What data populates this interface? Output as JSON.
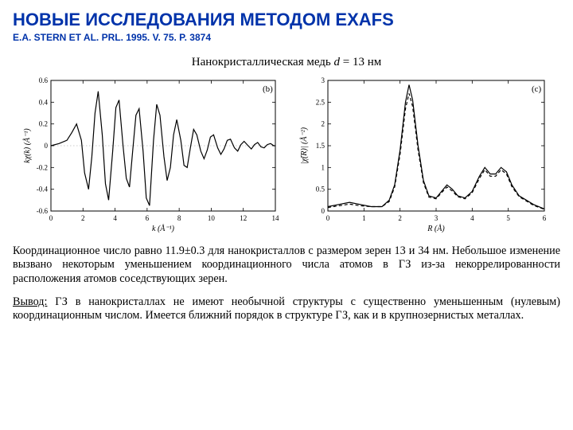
{
  "title": "НОВЫЕ ИССЛЕДОВАНИЯ МЕТОДОМ EXAFS",
  "citation": "E.A. STERN ET AL. PRL. 1995. V. 75. P. 3874",
  "subtitle_prefix": "Нанокристаллическая медь ",
  "subtitle_var": "d",
  "subtitle_suffix": " = 13 нм",
  "chart_left": {
    "type": "line",
    "panel_label": "(b)",
    "xlabel": "k (Å⁻¹)",
    "ylabel": "kχ(k) (Å⁻¹)",
    "xlim": [
      0,
      14
    ],
    "ylim": [
      -0.6,
      0.6
    ],
    "xticks": [
      0,
      2,
      4,
      6,
      8,
      10,
      12,
      14
    ],
    "yticks": [
      -0.6,
      -0.4,
      -0.2,
      0,
      0.2,
      0.4,
      0.6
    ],
    "axis_color": "#000000",
    "line_color": "#000000",
    "line_width": 1.2,
    "background_color": "#ffffff",
    "zero_line": true,
    "series": [
      [
        0,
        0
      ],
      [
        0.5,
        0.02
      ],
      [
        1,
        0.05
      ],
      [
        1.3,
        0.12
      ],
      [
        1.6,
        0.2
      ],
      [
        1.9,
        0.05
      ],
      [
        2.1,
        -0.25
      ],
      [
        2.35,
        -0.4
      ],
      [
        2.55,
        -0.1
      ],
      [
        2.75,
        0.3
      ],
      [
        2.95,
        0.5
      ],
      [
        3.2,
        0.1
      ],
      [
        3.4,
        -0.35
      ],
      [
        3.6,
        -0.5
      ],
      [
        3.85,
        -0.05
      ],
      [
        4.05,
        0.35
      ],
      [
        4.25,
        0.42
      ],
      [
        4.5,
        0.0
      ],
      [
        4.7,
        -0.3
      ],
      [
        4.9,
        -0.38
      ],
      [
        5.1,
        -0.05
      ],
      [
        5.3,
        0.28
      ],
      [
        5.5,
        0.34
      ],
      [
        5.75,
        -0.05
      ],
      [
        5.95,
        -0.48
      ],
      [
        6.15,
        -0.55
      ],
      [
        6.4,
        0.05
      ],
      [
        6.6,
        0.38
      ],
      [
        6.8,
        0.28
      ],
      [
        7.05,
        -0.1
      ],
      [
        7.25,
        -0.32
      ],
      [
        7.45,
        -0.2
      ],
      [
        7.65,
        0.1
      ],
      [
        7.85,
        0.24
      ],
      [
        8.1,
        0.05
      ],
      [
        8.3,
        -0.18
      ],
      [
        8.5,
        -0.2
      ],
      [
        8.7,
        -0.02
      ],
      [
        8.9,
        0.15
      ],
      [
        9.1,
        0.1
      ],
      [
        9.35,
        -0.05
      ],
      [
        9.55,
        -0.12
      ],
      [
        9.75,
        -0.04
      ],
      [
        9.95,
        0.08
      ],
      [
        10.15,
        0.1
      ],
      [
        10.4,
        -0.02
      ],
      [
        10.6,
        -0.08
      ],
      [
        10.8,
        -0.03
      ],
      [
        11,
        0.05
      ],
      [
        11.2,
        0.06
      ],
      [
        11.45,
        -0.02
      ],
      [
        11.65,
        -0.05
      ],
      [
        11.85,
        0.01
      ],
      [
        12.05,
        0.04
      ],
      [
        12.3,
        0.0
      ],
      [
        12.5,
        -0.03
      ],
      [
        12.7,
        0.01
      ],
      [
        12.9,
        0.03
      ],
      [
        13.1,
        -0.01
      ],
      [
        13.3,
        -0.02
      ],
      [
        13.5,
        0.01
      ],
      [
        13.7,
        0.02
      ],
      [
        13.9,
        0.0
      ],
      [
        14,
        0
      ]
    ]
  },
  "chart_right": {
    "type": "line",
    "panel_label": "(c)",
    "xlabel": "R (Å)",
    "ylabel": "|χ̃(R)| (Å⁻²)",
    "xlim": [
      0,
      6
    ],
    "ylim": [
      0,
      3.0
    ],
    "xticks": [
      0,
      1,
      2,
      3,
      4,
      5,
      6
    ],
    "yticks": [
      0,
      0.5,
      1.0,
      1.5,
      2.0,
      2.5,
      3.0
    ],
    "axis_color": "#000000",
    "line_color": "#000000",
    "dash_color": "#000000",
    "line_width": 1.2,
    "background_color": "#ffffff",
    "series_solid": [
      [
        0,
        0.1
      ],
      [
        0.3,
        0.15
      ],
      [
        0.6,
        0.2
      ],
      [
        0.9,
        0.15
      ],
      [
        1.2,
        0.1
      ],
      [
        1.5,
        0.1
      ],
      [
        1.7,
        0.25
      ],
      [
        1.85,
        0.6
      ],
      [
        2.0,
        1.4
      ],
      [
        2.15,
        2.5
      ],
      [
        2.25,
        2.9
      ],
      [
        2.35,
        2.55
      ],
      [
        2.5,
        1.5
      ],
      [
        2.65,
        0.7
      ],
      [
        2.8,
        0.35
      ],
      [
        3.0,
        0.3
      ],
      [
        3.15,
        0.45
      ],
      [
        3.3,
        0.6
      ],
      [
        3.45,
        0.5
      ],
      [
        3.6,
        0.35
      ],
      [
        3.8,
        0.3
      ],
      [
        4.0,
        0.45
      ],
      [
        4.2,
        0.8
      ],
      [
        4.35,
        1.0
      ],
      [
        4.5,
        0.85
      ],
      [
        4.65,
        0.85
      ],
      [
        4.8,
        1.0
      ],
      [
        4.95,
        0.9
      ],
      [
        5.1,
        0.6
      ],
      [
        5.3,
        0.35
      ],
      [
        5.5,
        0.25
      ],
      [
        5.7,
        0.15
      ],
      [
        5.9,
        0.08
      ],
      [
        6,
        0.05
      ]
    ],
    "series_dash": [
      [
        0,
        0.08
      ],
      [
        0.3,
        0.12
      ],
      [
        0.6,
        0.16
      ],
      [
        0.9,
        0.12
      ],
      [
        1.2,
        0.1
      ],
      [
        1.5,
        0.1
      ],
      [
        1.7,
        0.22
      ],
      [
        1.85,
        0.55
      ],
      [
        2.0,
        1.3
      ],
      [
        2.15,
        2.35
      ],
      [
        2.25,
        2.7
      ],
      [
        2.35,
        2.4
      ],
      [
        2.5,
        1.4
      ],
      [
        2.65,
        0.65
      ],
      [
        2.8,
        0.32
      ],
      [
        3.0,
        0.28
      ],
      [
        3.15,
        0.42
      ],
      [
        3.3,
        0.55
      ],
      [
        3.45,
        0.46
      ],
      [
        3.6,
        0.33
      ],
      [
        3.8,
        0.28
      ],
      [
        4.0,
        0.42
      ],
      [
        4.2,
        0.75
      ],
      [
        4.35,
        0.95
      ],
      [
        4.5,
        0.8
      ],
      [
        4.65,
        0.8
      ],
      [
        4.8,
        0.95
      ],
      [
        4.95,
        0.85
      ],
      [
        5.1,
        0.56
      ],
      [
        5.3,
        0.33
      ],
      [
        5.5,
        0.23
      ],
      [
        5.7,
        0.13
      ],
      [
        5.9,
        0.07
      ],
      [
        6,
        0.04
      ]
    ]
  },
  "para1": "Координационное число равно 11.9±0.3 для нанокристаллов с размером зерен 13 и 34 нм. Небольшое изменение вызвано некоторым уменьшением координационного числа атомов в ГЗ из-за некоррелированности расположения атомов соседствующих зерен.",
  "para2_lead": "Вывод:",
  "para2_body": " ГЗ в нанокристаллах не имеют необычной структуры с существенно уменьшенным (нулевым) координационным числом. Имеется ближний порядок в структуре ГЗ, как и в крупнозернистых металлах."
}
